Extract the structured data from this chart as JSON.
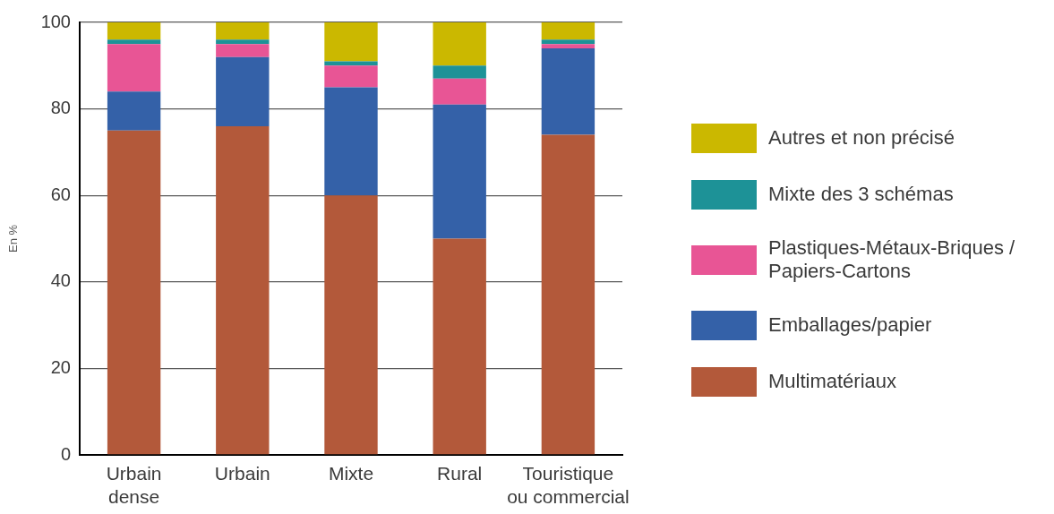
{
  "chart_data": {
    "type": "bar",
    "stacked": true,
    "ylabel": "En %",
    "categories": [
      "Urbain dense",
      "Urbain",
      "Mixte",
      "Rural",
      "Touristique ou commercial"
    ],
    "series": [
      {
        "name": "Multimatériaux",
        "color": "#b3593a",
        "values": [
          75,
          76,
          60,
          50,
          74
        ]
      },
      {
        "name": "Emballages/papier",
        "color": "#3461a8",
        "values": [
          9,
          16,
          25,
          31,
          20
        ]
      },
      {
        "name": "Plastiques-Métaux-Briques / Papiers-Cartons",
        "color": "#e85595",
        "values": [
          11,
          3,
          5,
          6,
          1
        ]
      },
      {
        "name": "Mixte des 3 schémas",
        "color": "#1d9297",
        "values": [
          1,
          1,
          1,
          3,
          1
        ]
      },
      {
        "name": "Autres et non précisé",
        "color": "#cbb800",
        "values": [
          4,
          4,
          9,
          10,
          4
        ]
      }
    ],
    "ylim": [
      0,
      100
    ],
    "yticks": [
      0,
      20,
      40,
      60,
      80,
      100
    ],
    "grid": "y",
    "legend": "right"
  }
}
